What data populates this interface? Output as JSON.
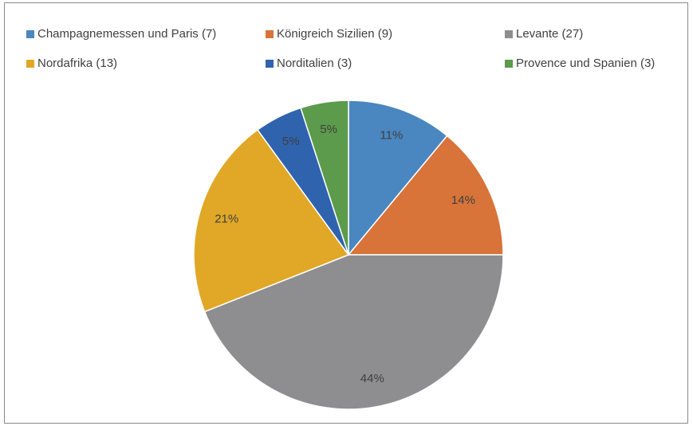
{
  "chart_data": {
    "type": "pie",
    "categories": [
      "Champagnemessen und Paris (7)",
      "Königreich Sizilien (9)",
      "Levante (27)",
      "Nordafrika (13)",
      "Norditalien (3)",
      "Provence und Spanien (3)"
    ],
    "values": [
      11,
      14,
      44,
      21,
      5,
      5
    ],
    "value_labels": [
      "11%",
      "14%",
      "44%",
      "21%",
      "5%",
      "5%"
    ],
    "colors": [
      "#4a86c0",
      "#d8733a",
      "#8e8e90",
      "#e0a826",
      "#2f63ae",
      "#5b9b4b"
    ],
    "legend": "top"
  }
}
